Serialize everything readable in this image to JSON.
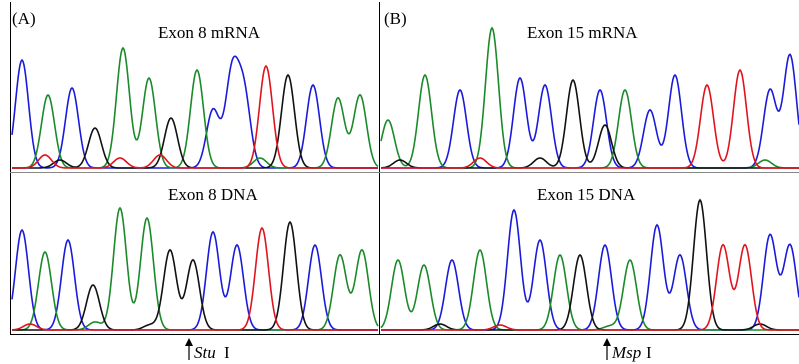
{
  "panels": [
    {
      "letter": "(A)",
      "top_label": "Exon 8 mRNA",
      "bottom_label": "Exon 8 DNA",
      "enzyme": "Stu",
      "enzyme_suffix": "I"
    },
    {
      "letter": "(B)",
      "top_label": "Exon 15 mRNA",
      "bottom_label": "Exon 15 DNA",
      "enzyme": "Msp",
      "enzyme_suffix": "I"
    }
  ]
}
